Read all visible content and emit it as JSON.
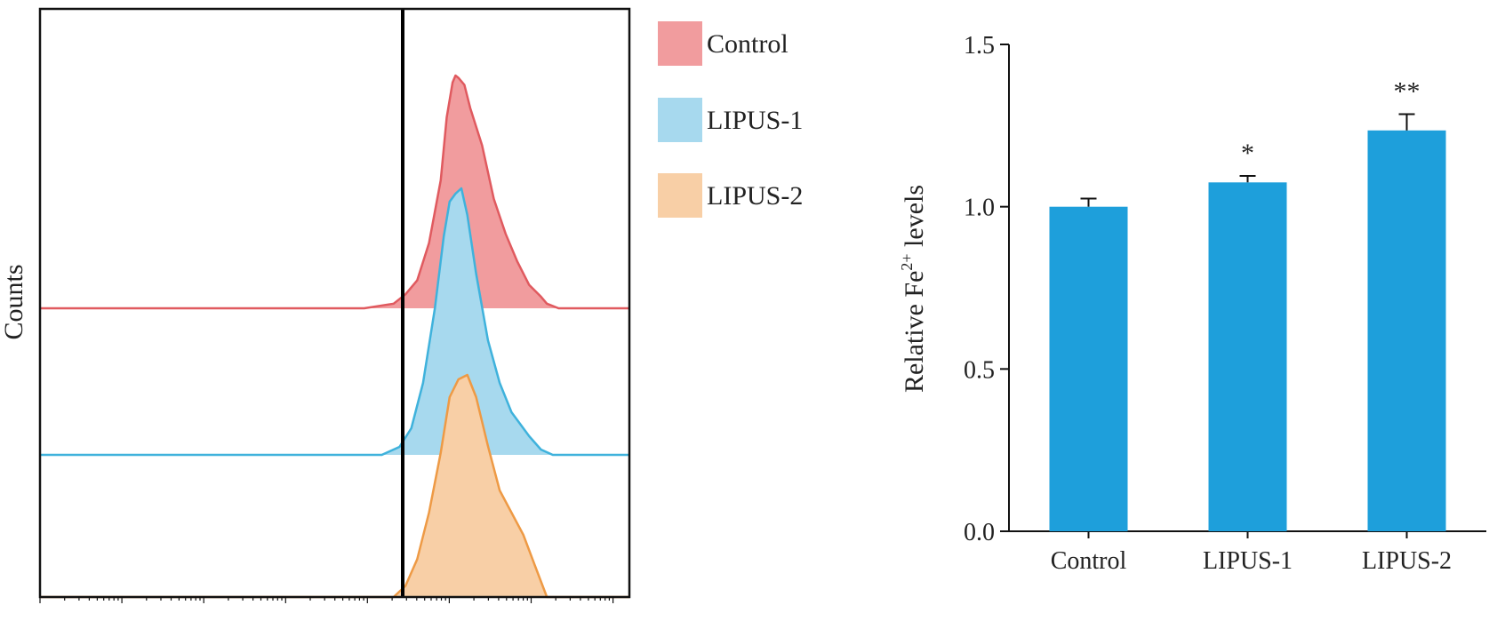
{
  "chart_data": [
    {
      "type": "histogram-overlay",
      "ylabel": "Counts",
      "xlabel": "",
      "x_scale": "log",
      "series": [
        {
          "name": "Control",
          "color": "#e05a5f",
          "fill": "#f19c9e",
          "x": [
            0.0,
            0.55,
            0.6,
            0.62,
            0.64,
            0.66,
            0.68,
            0.69,
            0.7,
            0.705,
            0.71,
            0.72,
            0.73,
            0.75,
            0.77,
            0.79,
            0.81,
            0.83,
            0.85,
            0.86,
            0.88,
            1.0
          ],
          "y": [
            0.0,
            0.0,
            0.02,
            0.06,
            0.12,
            0.28,
            0.55,
            0.82,
            0.97,
            1.0,
            0.99,
            0.96,
            0.86,
            0.7,
            0.47,
            0.32,
            0.2,
            0.1,
            0.05,
            0.02,
            0.0,
            0.0
          ]
        },
        {
          "name": "LIPUS-1",
          "color": "#3fb2dc",
          "fill": "#a7d9ee",
          "x": [
            0.0,
            0.58,
            0.61,
            0.63,
            0.65,
            0.67,
            0.685,
            0.695,
            0.705,
            0.715,
            0.725,
            0.74,
            0.76,
            0.78,
            0.8,
            0.83,
            0.85,
            0.87,
            1.0
          ],
          "y": [
            0.0,
            0.0,
            0.03,
            0.1,
            0.27,
            0.55,
            0.82,
            0.95,
            0.98,
            1.0,
            0.9,
            0.68,
            0.43,
            0.27,
            0.16,
            0.07,
            0.02,
            0.0,
            0.0
          ]
        },
        {
          "name": "LIPUS-2",
          "color": "#ee9a45",
          "fill": "#f8cfa6",
          "x": [
            0.0,
            0.6,
            0.62,
            0.64,
            0.66,
            0.68,
            0.695,
            0.71,
            0.725,
            0.74,
            0.76,
            0.78,
            0.8,
            0.82,
            0.84,
            0.86,
            1.0
          ],
          "y": [
            0.0,
            0.0,
            0.05,
            0.17,
            0.38,
            0.65,
            0.9,
            0.98,
            1.0,
            0.9,
            0.68,
            0.48,
            0.38,
            0.28,
            0.14,
            0.0,
            0.0
          ]
        }
      ],
      "legend": [
        "Control",
        "LIPUS-1",
        "LIPUS-2"
      ],
      "legend_position": "right"
    },
    {
      "type": "bar",
      "categories": [
        "Control",
        "LIPUS-1",
        "LIPUS-2"
      ],
      "values": [
        1.0,
        1.075,
        1.235
      ],
      "errors": [
        0.025,
        0.02,
        0.05
      ],
      "significance": [
        "",
        "*",
        "**"
      ],
      "ylabel_text": "Relative Fe",
      "ylabel_sup": "2+",
      "ylabel_suffix": " levels",
      "ylim": [
        0.0,
        1.5
      ],
      "yticks": [
        0.0,
        0.5,
        1.0,
        1.5
      ],
      "ytick_labels": [
        "0.0",
        "0.5",
        "1.0",
        "1.5"
      ],
      "bar_color": "#1e9fdb"
    }
  ]
}
